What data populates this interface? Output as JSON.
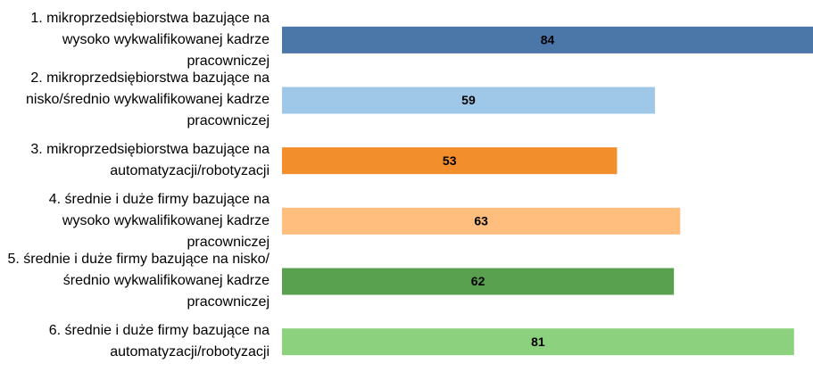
{
  "chart_data": {
    "type": "barh",
    "categories": [
      "1. mikroprzedsiębiorstwa bazujące na wysoko wykwalifikowanej kadrze pracowniczej",
      "2. mikroprzedsiębiorstwa bazujące na nisko/średnio wykwalifikowanej kadrze pracowniczej",
      "3. mikroprzedsiębiorstwa bazujące na automatyzacji/robotyzacji",
      "4. średnie i duże firmy bazujące na wysoko wykwalifikowanej kadrze pracowniczej",
      "5. średnie i duże firmy bazujące na nisko/średnio wykwalifikowanej kadrze pracowniczej",
      "6. średnie i duże firmy bazujące na automatyzacji/robotyzacji"
    ],
    "values": [
      84,
      59,
      53,
      63,
      62,
      81
    ],
    "colors": [
      "#4a76a8",
      "#9fc8e8",
      "#f28e2b",
      "#ffbe7d",
      "#59a14f",
      "#8cd17d"
    ],
    "xlim": [
      0,
      84
    ]
  }
}
